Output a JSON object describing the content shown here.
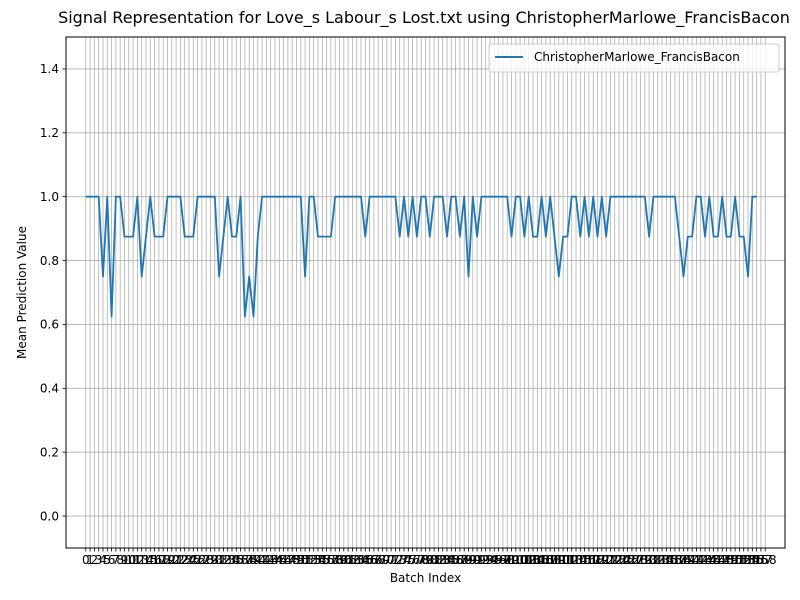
{
  "chart_data": {
    "type": "line",
    "title": "Signal Representation for Love_s Labour_s Lost.txt using ChristopherMarlowe_FrancisBacon",
    "xlabel": "Batch Index",
    "ylabel": "Mean Prediction Value",
    "ylim": [
      -0.1,
      1.5
    ],
    "xlim": [
      -4.6,
      162.6
    ],
    "yticks": [
      "0.0",
      "0.2",
      "0.4",
      "0.6",
      "0.8",
      "1.0",
      "1.2",
      "1.4"
    ],
    "grid": true,
    "legend": "top-right",
    "x_tick_count": 159,
    "series": [
      {
        "name": "ChristopherMarlowe_FrancisBacon",
        "color": "#1f77b4",
        "values": [
          1,
          1,
          1,
          1,
          0.75,
          1,
          0.625,
          1,
          1,
          0.875,
          0.875,
          0.875,
          1,
          0.75,
          0.875,
          1,
          0.875,
          0.875,
          0.875,
          1,
          1,
          1,
          1,
          0.875,
          0.875,
          0.875,
          1,
          1,
          1,
          1,
          1,
          0.75,
          0.875,
          1,
          0.875,
          0.875,
          1,
          0.625,
          0.75,
          0.625,
          0.875,
          1,
          1,
          1,
          1,
          1,
          1,
          1,
          1,
          1,
          1,
          0.75,
          1,
          1,
          0.875,
          0.875,
          0.875,
          0.875,
          1,
          1,
          1,
          1,
          1,
          1,
          1,
          0.875,
          1,
          1,
          1,
          1,
          1,
          1,
          1,
          0.875,
          1,
          0.875,
          1,
          0.875,
          1,
          1,
          0.875,
          1,
          1,
          1,
          0.875,
          1,
          1,
          0.875,
          1,
          0.75,
          1,
          0.875,
          1,
          1,
          1,
          1,
          1,
          1,
          1,
          0.875,
          1,
          1,
          0.875,
          1,
          0.875,
          0.875,
          1,
          0.875,
          1,
          0.875,
          0.75,
          0.875,
          0.875,
          1,
          1,
          0.875,
          1,
          0.875,
          1,
          0.875,
          1,
          0.875,
          1,
          1,
          1,
          1,
          1,
          1,
          1,
          1,
          1,
          0.875,
          1,
          1,
          1,
          1,
          1,
          1,
          0.875,
          0.75,
          0.875,
          0.875,
          1,
          1,
          0.875,
          1,
          0.875,
          0.875,
          1,
          0.875,
          0.875,
          1,
          0.875,
          0.875,
          0.75,
          1,
          1
        ]
      }
    ]
  }
}
